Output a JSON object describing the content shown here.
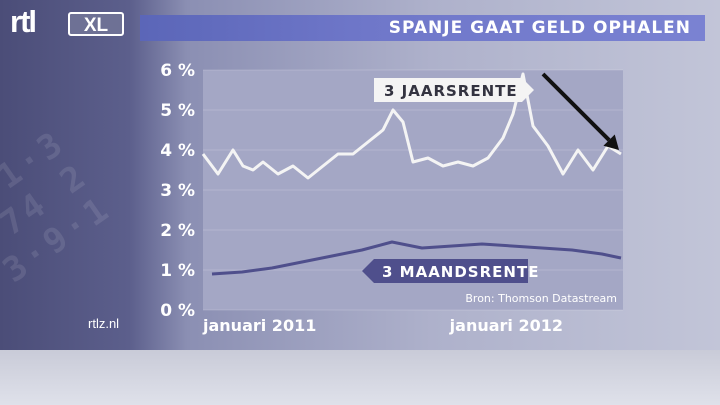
{
  "header": {
    "logo_text": "rtl",
    "logo_badge": "XL",
    "title": "SPANJE GAAT GELD OPHALEN"
  },
  "footer": {
    "site": "rtlz.nl"
  },
  "colors": {
    "series_3y": "#f4f4f4",
    "series_3m": "#4f4f8c",
    "plot_bg": "#a4a7c5",
    "title_bar": "#6b74c6",
    "arrow": "#111111"
  },
  "chart_data": {
    "type": "line",
    "source": "Bron: Thomson Datastream",
    "y_ticks": [
      "0 %",
      "1 %",
      "2 %",
      "3 %",
      "4 %",
      "5 %",
      "6 %"
    ],
    "ylim": [
      0,
      6
    ],
    "x_range": [
      "2011-01",
      "2012-03"
    ],
    "x_ticks": [
      {
        "label": "januari 2011",
        "x": "2011-01"
      },
      {
        "label": "januari 2012",
        "x": "2012-01"
      }
    ],
    "grid": true,
    "series": [
      {
        "name": "3 JAARSRENTE",
        "x": [
          "2011-01",
          "2011-01",
          "2011-02",
          "2011-02",
          "2011-02",
          "2011-03",
          "2011-03",
          "2011-04",
          "2011-04",
          "2011-05",
          "2011-05",
          "2011-06",
          "2011-06",
          "2011-07",
          "2011-07",
          "2011-07",
          "2011-08",
          "2011-08",
          "2011-09",
          "2011-09",
          "2011-10",
          "2011-10",
          "2011-11",
          "2011-11",
          "2011-11",
          "2011-12",
          "2011-12",
          "2012-01",
          "2012-01",
          "2012-02",
          "2012-02",
          "2012-03"
        ],
        "values": [
          3.9,
          3.4,
          4.0,
          3.6,
          3.5,
          3.7,
          3.4,
          3.6,
          3.3,
          3.6,
          3.9,
          3.9,
          4.2,
          4.5,
          5.0,
          4.7,
          3.7,
          3.8,
          3.6,
          3.7,
          3.6,
          3.8,
          4.3,
          4.9,
          5.9,
          4.6,
          4.1,
          3.4,
          4.0,
          3.5,
          4.1,
          3.9
        ]
      },
      {
        "name": "3 MAANDSRENTE",
        "x": [
          "2011-01",
          "2011-02",
          "2011-03",
          "2011-04",
          "2011-05",
          "2011-06",
          "2011-07",
          "2011-08",
          "2011-09",
          "2011-10",
          "2011-11",
          "2011-12",
          "2012-01",
          "2012-02",
          "2012-03"
        ],
        "values": [
          0.9,
          0.95,
          1.05,
          1.2,
          1.35,
          1.5,
          1.7,
          1.55,
          1.6,
          1.65,
          1.6,
          1.55,
          1.5,
          1.4,
          1.3
        ]
      }
    ],
    "annotation": {
      "type": "arrow",
      "from": {
        "x": "2011-12",
        "y": 5.9
      },
      "to": {
        "x": "2012-03",
        "y": 4.0
      }
    }
  }
}
